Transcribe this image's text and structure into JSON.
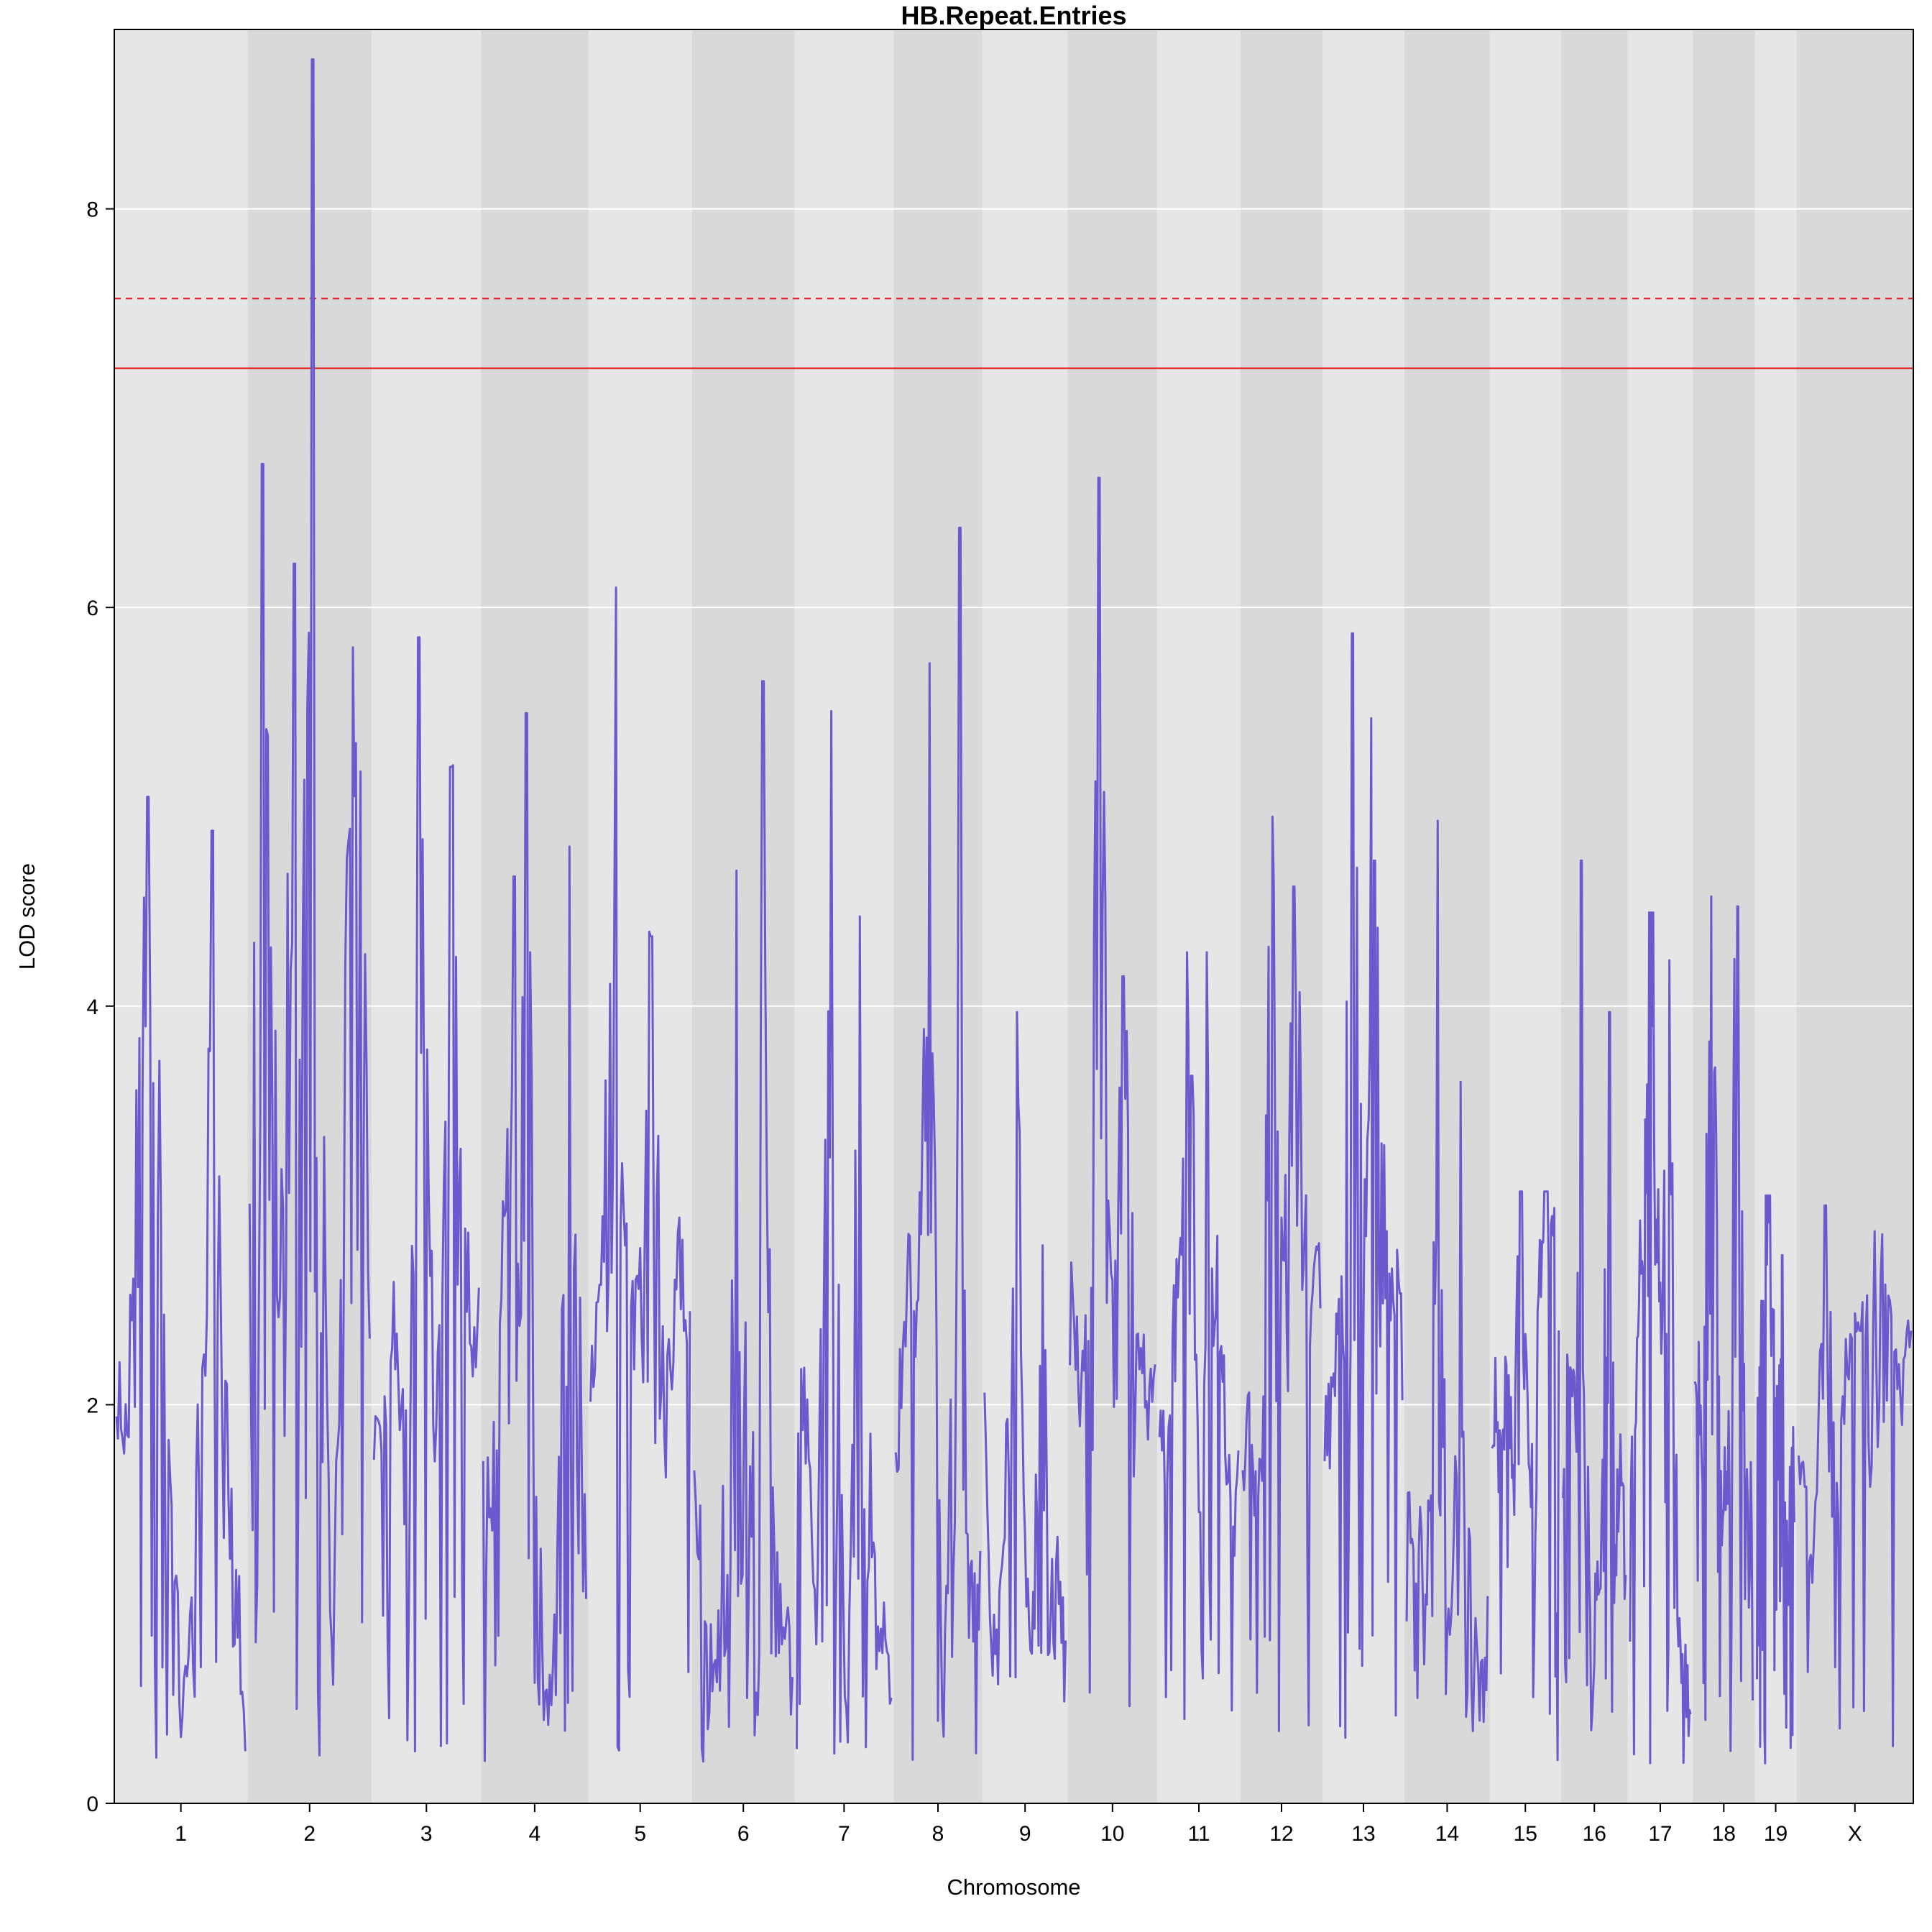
{
  "chart_data": {
    "type": "line",
    "title": "HB.Repeat.Entries",
    "xlabel": "Chromosome",
    "ylabel": "LOD score",
    "ylim": [
      0,
      8.9
    ],
    "yticks": [
      0,
      2,
      4,
      6,
      8
    ],
    "grid": true,
    "legend": "none",
    "chromosomes": [
      "1",
      "2",
      "3",
      "4",
      "5",
      "6",
      "7",
      "8",
      "9",
      "10",
      "11",
      "12",
      "13",
      "14",
      "15",
      "16",
      "17",
      "18",
      "19",
      "X"
    ],
    "chromosome_widths": [
      195,
      182,
      160,
      157,
      152,
      150,
      145,
      130,
      125,
      131,
      122,
      120,
      120,
      125,
      104,
      98,
      95,
      91,
      61,
      171
    ],
    "thresholds": [
      {
        "value": 7.55,
        "style": "dashed",
        "color": "#e31a1c"
      },
      {
        "value": 7.2,
        "style": "solid",
        "color": "#e31a1c"
      }
    ],
    "series": [
      {
        "color": "#6a5acd",
        "peaks": [
          {
            "chr": "1",
            "value": 5.05
          },
          {
            "chr": "1",
            "value": 4.88
          },
          {
            "chr": "2",
            "value": 6.72
          },
          {
            "chr": "2",
            "value": 6.22
          },
          {
            "chr": "2",
            "value": 8.75
          },
          {
            "chr": "2",
            "value": 5.8
          },
          {
            "chr": "3",
            "value": 5.85
          },
          {
            "chr": "3",
            "value": 5.2
          },
          {
            "chr": "4",
            "value": 4.65
          },
          {
            "chr": "4",
            "value": 5.47
          },
          {
            "chr": "4",
            "value": 4.8
          },
          {
            "chr": "5",
            "value": 6.1
          },
          {
            "chr": "5",
            "value": 4.35
          },
          {
            "chr": "6",
            "value": 4.68
          },
          {
            "chr": "6",
            "value": 5.63
          },
          {
            "chr": "7",
            "value": 5.48
          },
          {
            "chr": "7",
            "value": 4.45
          },
          {
            "chr": "8",
            "value": 5.72
          },
          {
            "chr": "8",
            "value": 6.4
          },
          {
            "chr": "9",
            "value": 3.97
          },
          {
            "chr": "9",
            "value": 2.8
          },
          {
            "chr": "10",
            "value": 6.65
          },
          {
            "chr": "10",
            "value": 4.15
          },
          {
            "chr": "11",
            "value": 3.65
          },
          {
            "chr": "11",
            "value": 4.27
          },
          {
            "chr": "12",
            "value": 4.95
          },
          {
            "chr": "12",
            "value": 4.6
          },
          {
            "chr": "13",
            "value": 5.87
          },
          {
            "chr": "13",
            "value": 4.73
          },
          {
            "chr": "14",
            "value": 4.93
          },
          {
            "chr": "14",
            "value": 3.62
          },
          {
            "chr": "15",
            "value": 3.07
          },
          {
            "chr": "15",
            "value": 2.82
          },
          {
            "chr": "16",
            "value": 4.73
          },
          {
            "chr": "16",
            "value": 3.97
          },
          {
            "chr": "17",
            "value": 4.47
          },
          {
            "chr": "17",
            "value": 4.23
          },
          {
            "chr": "18",
            "value": 4.55
          },
          {
            "chr": "18",
            "value": 4.5
          },
          {
            "chr": "19",
            "value": 3.05
          },
          {
            "chr": "19",
            "value": 2.75
          },
          {
            "chr": "X",
            "value": 3.0
          },
          {
            "chr": "X",
            "value": 2.87
          }
        ]
      }
    ]
  }
}
